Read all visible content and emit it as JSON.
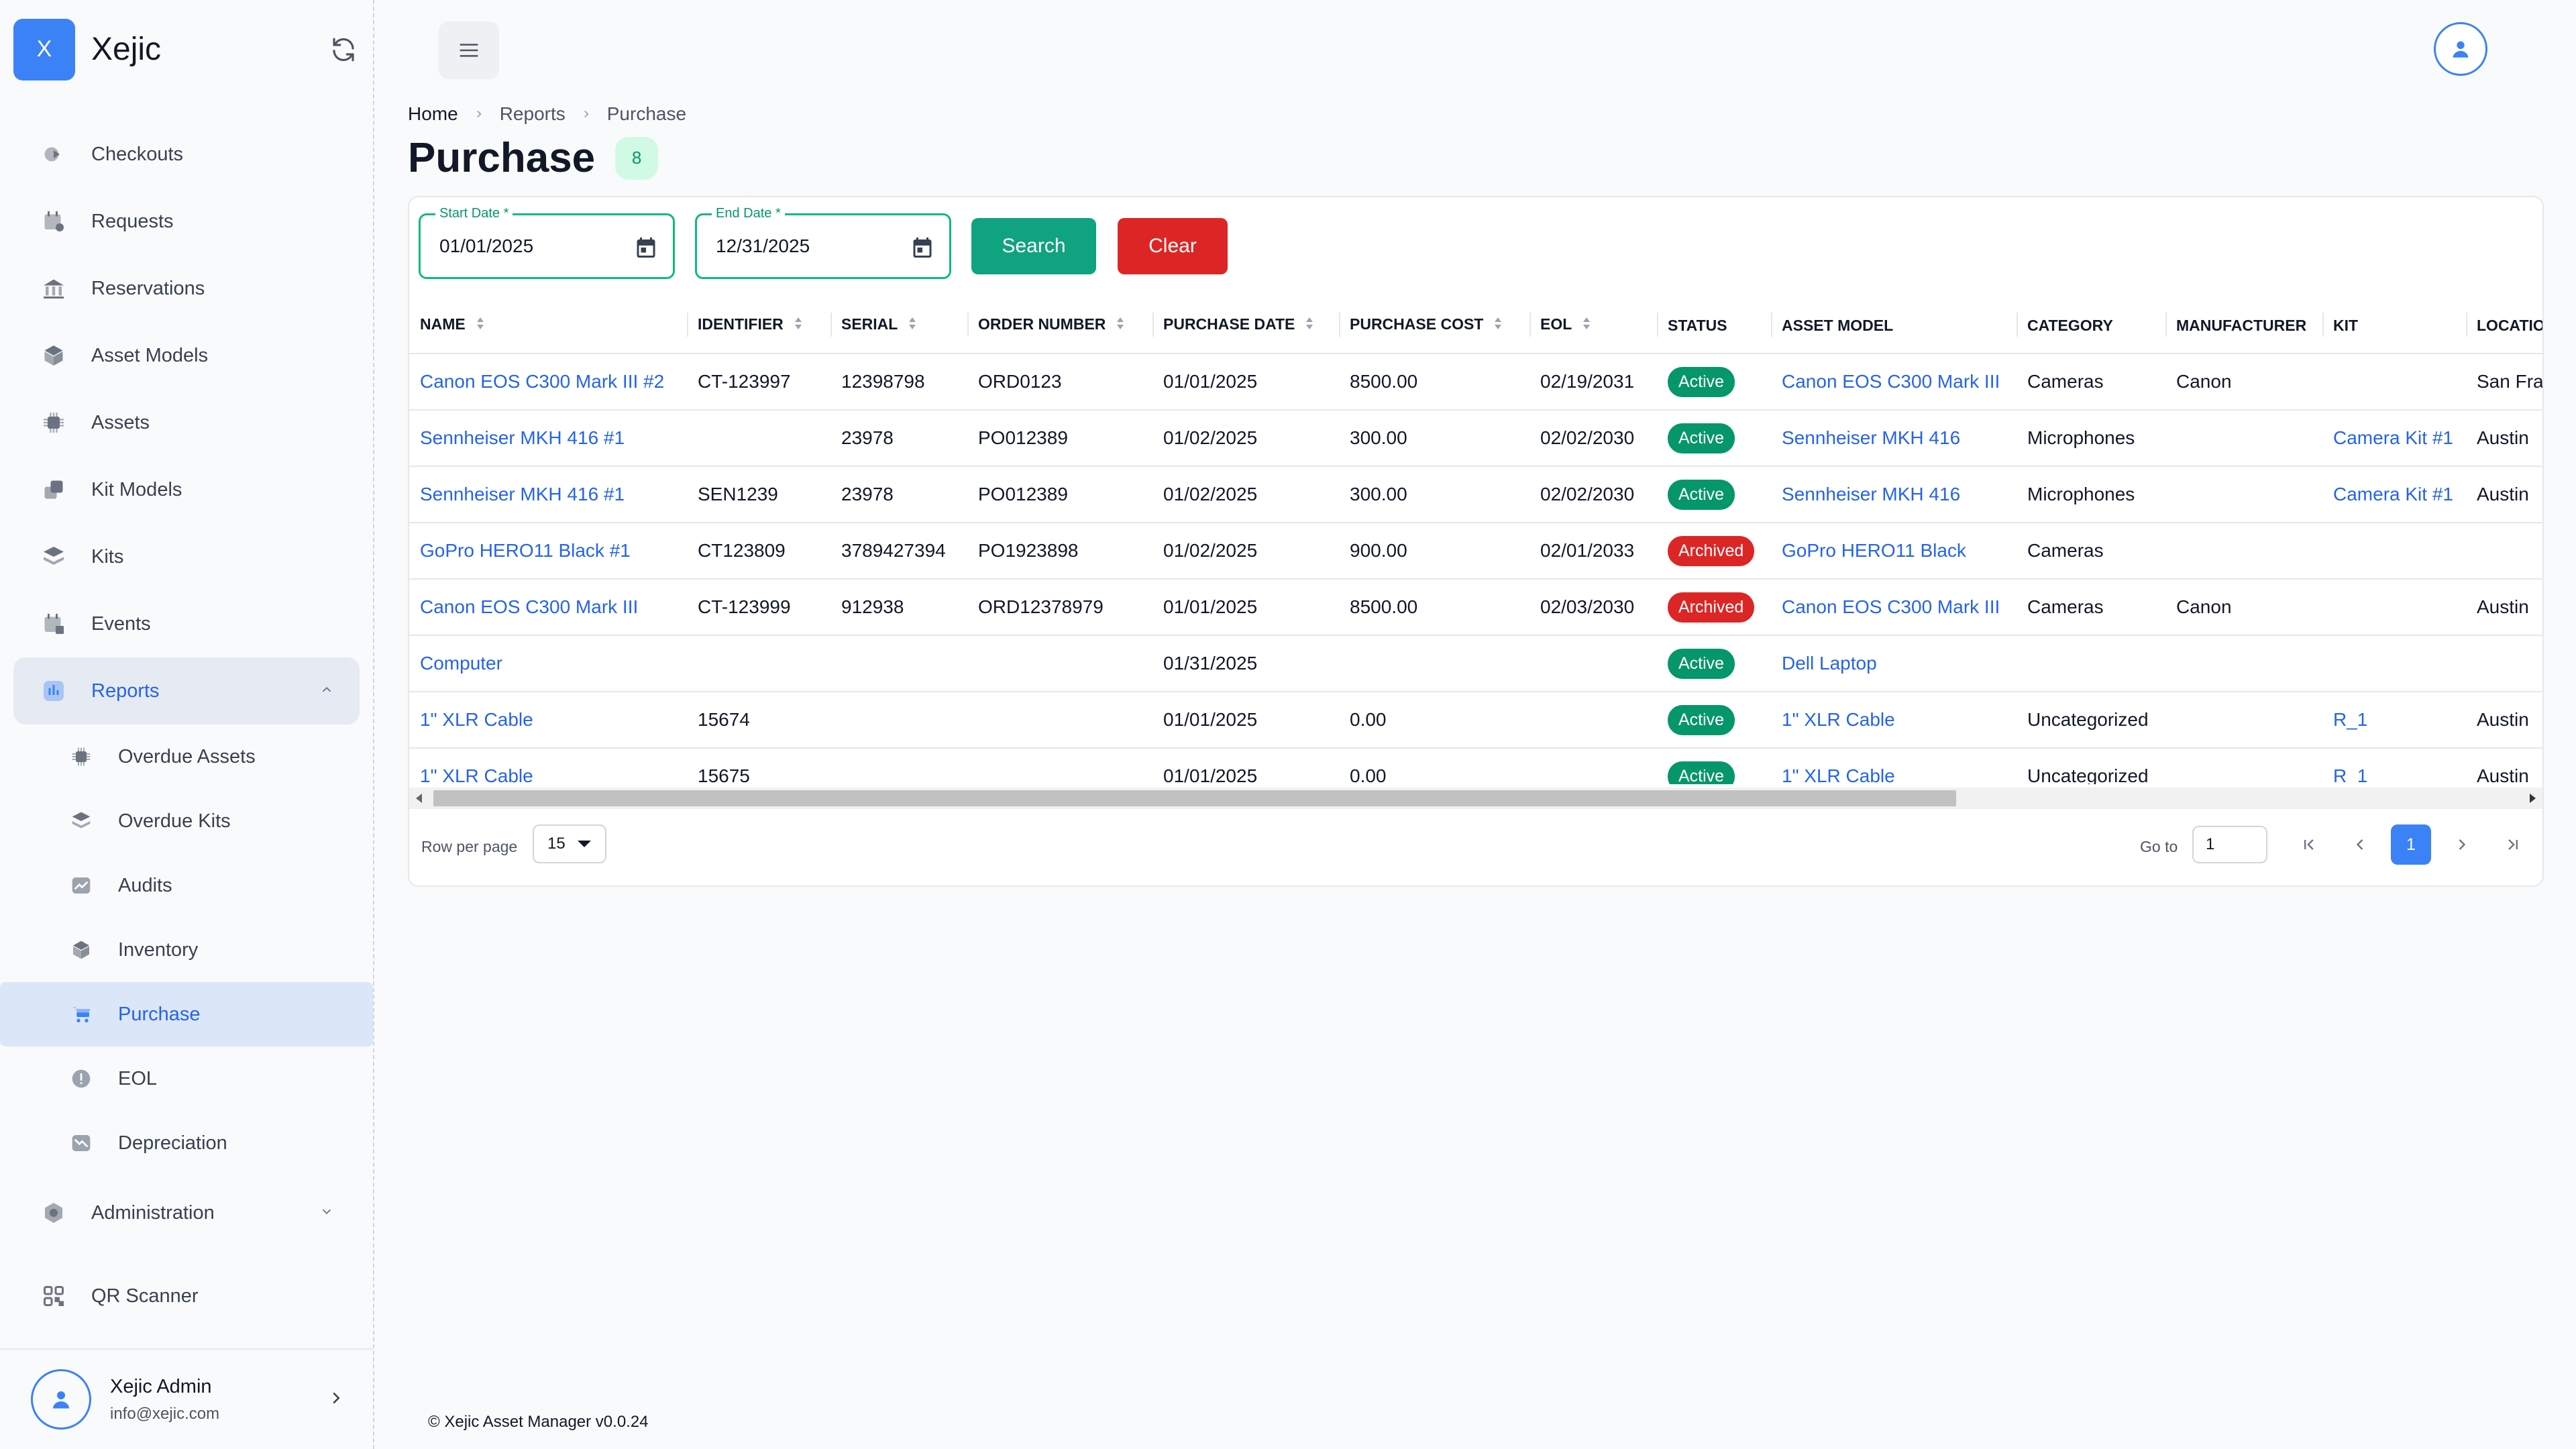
{
  "app": {
    "logo_letter": "X",
    "name": "Xejic"
  },
  "sidebar": {
    "items": [
      {
        "label": "Checkouts",
        "icon": "checkout-icon"
      },
      {
        "label": "Requests",
        "icon": "calendar-icon"
      },
      {
        "label": "Reservations",
        "icon": "building-icon"
      },
      {
        "label": "Asset Models",
        "icon": "cube-icon"
      },
      {
        "label": "Assets",
        "icon": "chip-icon"
      },
      {
        "label": "Kit Models",
        "icon": "kit-model-icon"
      },
      {
        "label": "Kits",
        "icon": "layers-icon"
      },
      {
        "label": "Events",
        "icon": "event-icon"
      }
    ],
    "reports": {
      "label": "Reports",
      "children": [
        {
          "label": "Overdue Assets",
          "icon": "chip-icon"
        },
        {
          "label": "Overdue Kits",
          "icon": "layers-icon"
        },
        {
          "label": "Audits",
          "icon": "chart-icon"
        },
        {
          "label": "Inventory",
          "icon": "box-icon"
        },
        {
          "label": "Purchase",
          "icon": "cart-icon",
          "active": true
        },
        {
          "label": "EOL",
          "icon": "alert-icon"
        },
        {
          "label": "Depreciation",
          "icon": "trend-down-icon"
        }
      ]
    },
    "administration": {
      "label": "Administration"
    },
    "qr": {
      "label": "QR Scanner"
    },
    "user": {
      "name": "Xejic Admin",
      "email": "info@xejic.com"
    }
  },
  "breadcrumb": [
    "Home",
    "Reports",
    "Purchase"
  ],
  "page": {
    "title": "Purchase",
    "count": "8"
  },
  "filters": {
    "start_label": "Start Date *",
    "start_value": "01/01/2025",
    "end_label": "End Date *",
    "end_value": "12/31/2025",
    "search_label": "Search",
    "clear_label": "Clear"
  },
  "table": {
    "columns": [
      "NAME",
      "IDENTIFIER",
      "SERIAL",
      "ORDER NUMBER",
      "PURCHASE DATE",
      "PURCHASE COST",
      "EOL",
      "STATUS",
      "ASSET MODEL",
      "CATEGORY",
      "MANUFACTURER",
      "KIT",
      "LOCATION"
    ],
    "rows": [
      [
        "Canon EOS C300 Mark III #2",
        "CT-123997",
        "12398798",
        "ORD0123",
        "01/01/2025",
        "8500.00",
        "02/19/2031",
        "Active",
        "Canon EOS C300 Mark III",
        "Cameras",
        "Canon",
        "",
        "San Francisco"
      ],
      [
        "Sennheiser MKH 416 #1",
        "",
        "23978",
        "PO012389",
        "01/02/2025",
        "300.00",
        "02/02/2030",
        "Active",
        "Sennheiser MKH 416",
        "Microphones",
        "",
        "Camera Kit #1",
        "Austin"
      ],
      [
        "Sennheiser MKH 416 #1",
        "SEN1239",
        "23978",
        "PO012389",
        "01/02/2025",
        "300.00",
        "02/02/2030",
        "Active",
        "Sennheiser MKH 416",
        "Microphones",
        "",
        "Camera Kit #1",
        "Austin"
      ],
      [
        "GoPro HERO11 Black #1",
        "CT123809",
        "3789427394",
        "PO1923898",
        "01/02/2025",
        "900.00",
        "02/01/2033",
        "Archived",
        "GoPro HERO11 Black",
        "Cameras",
        "",
        "",
        ""
      ],
      [
        "Canon EOS C300 Mark III",
        "CT-123999",
        "912938",
        "ORD12378979",
        "01/01/2025",
        "8500.00",
        "02/03/2030",
        "Archived",
        "Canon EOS C300 Mark III",
        "Cameras",
        "Canon",
        "",
        "Austin"
      ],
      [
        "Computer",
        "",
        "",
        "",
        "01/31/2025",
        "",
        "",
        "Active",
        "Dell Laptop",
        "",
        "",
        "",
        ""
      ],
      [
        "1\" XLR Cable",
        "15674",
        "",
        "",
        "01/01/2025",
        "0.00",
        "",
        "Active",
        "1\" XLR Cable",
        "Uncategorized",
        "",
        "R_1",
        "Austin"
      ],
      [
        "1\" XLR Cable",
        "15675",
        "",
        "",
        "01/01/2025",
        "0.00",
        "",
        "Active",
        "1\" XLR Cable",
        "Uncategorized",
        "",
        "R_1",
        "Austin"
      ]
    ]
  },
  "pagination": {
    "rows_label": "Row per page",
    "rows_value": "15",
    "goto_label": "Go to",
    "goto_value": "1",
    "current_page": "1"
  },
  "footer": "© Xejic Asset Manager v0.0.24",
  "colors": {
    "accent": "#3b82f6",
    "success": "#059669",
    "danger": "#dc2626"
  }
}
